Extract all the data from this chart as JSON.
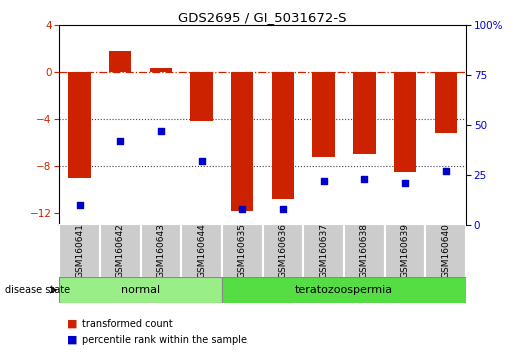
{
  "title": "GDS2695 / GI_5031672-S",
  "samples": [
    "GSM160641",
    "GSM160642",
    "GSM160643",
    "GSM160644",
    "GSM160635",
    "GSM160636",
    "GSM160637",
    "GSM160638",
    "GSM160639",
    "GSM160640"
  ],
  "red_values": [
    -9.0,
    1.8,
    0.3,
    -4.2,
    -11.8,
    -10.8,
    -7.2,
    -7.0,
    -8.5,
    -5.2
  ],
  "blue_values": [
    10,
    42,
    47,
    32,
    8,
    8,
    22,
    23,
    21,
    27
  ],
  "ylim_left": [
    -13,
    4
  ],
  "ylim_right": [
    0,
    100
  ],
  "left_ticks": [
    4,
    0,
    -4,
    -8,
    -12
  ],
  "right_ticks": [
    100,
    75,
    50,
    25,
    0
  ],
  "bar_color": "#cc2200",
  "dot_color": "#0000cc",
  "dotted_lines": [
    -4,
    -8
  ],
  "groups": [
    {
      "label": "normal",
      "indices": [
        0,
        1,
        2,
        3
      ],
      "color": "#99ee88"
    },
    {
      "label": "teratozoospermia",
      "indices": [
        4,
        5,
        6,
        7,
        8,
        9
      ],
      "color": "#55dd44"
    }
  ],
  "disease_state_label": "disease state",
  "legend": [
    {
      "label": "transformed count",
      "color": "#cc2200"
    },
    {
      "label": "percentile rank within the sample",
      "color": "#0000cc"
    }
  ],
  "bg_color": "#ffffff",
  "plot_bg": "#ffffff",
  "bar_width": 0.55,
  "label_bg": "#cccccc",
  "group_border": "#888888"
}
